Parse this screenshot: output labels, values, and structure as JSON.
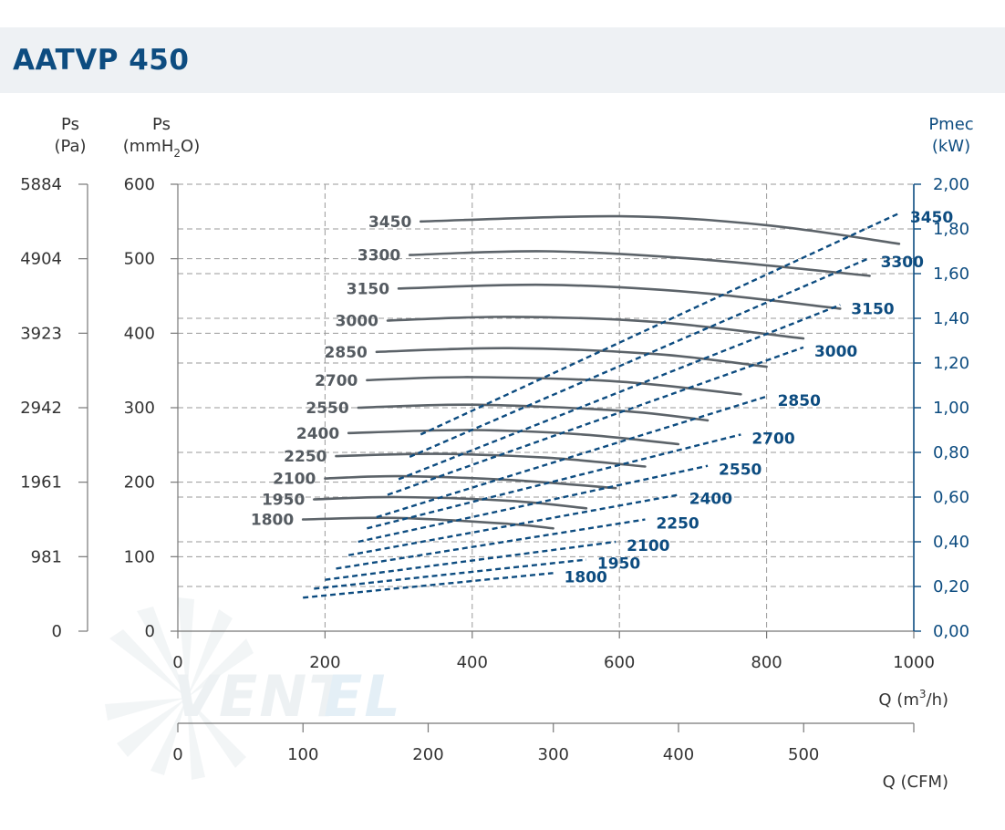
{
  "title": "AATVP 450",
  "chart_data": {
    "type": "line",
    "title": "AATVP 450",
    "axes": {
      "left_pa": {
        "label": "Ps",
        "unit": "(Pa)",
        "ticks": [
          "5884",
          "4904",
          "3923",
          "2942",
          "1961",
          "981",
          "0"
        ]
      },
      "left_mmh2o": {
        "label": "Ps",
        "unit_prefix": "(mmH",
        "unit_sub": "2",
        "unit_suffix": "O)",
        "ticks": [
          "600",
          "500",
          "400",
          "300",
          "200",
          "100",
          "0"
        ],
        "ylim": [
          0,
          600
        ]
      },
      "right_power": {
        "label": "Pmec",
        "unit": "(kW)",
        "ticks": [
          "2,00",
          "1,80",
          "1,60",
          "1,40",
          "1,20",
          "1,00",
          "0,80",
          "0,60",
          "0,40",
          "0,20",
          "0,00"
        ],
        "ylim": [
          0,
          2.0
        ]
      },
      "x_m3h": {
        "label_prefix": "Q (m",
        "label_sup": "3",
        "label_suffix": "/h)",
        "ticks": [
          "0",
          "200",
          "400",
          "600",
          "800",
          "1000"
        ],
        "xlim": [
          0,
          1000
        ]
      },
      "x_cfm": {
        "label": "Q (CFM)",
        "ticks": [
          "0",
          "100",
          "200",
          "300",
          "400",
          "500"
        ],
        "xlim": [
          0,
          588
        ]
      }
    },
    "grid": true,
    "pressure_series": [
      {
        "name": "3450",
        "x": [
          330,
          600,
          800,
          980
        ],
        "y": [
          550,
          557,
          545,
          520
        ]
      },
      {
        "name": "3300",
        "x": [
          315,
          500,
          700,
          940
        ],
        "y": [
          505,
          510,
          500,
          477
        ]
      },
      {
        "name": "3150",
        "x": [
          300,
          500,
          700,
          900
        ],
        "y": [
          460,
          465,
          455,
          433
        ]
      },
      {
        "name": "3000",
        "x": [
          285,
          450,
          650,
          850
        ],
        "y": [
          417,
          422,
          415,
          393
        ]
      },
      {
        "name": "2850",
        "x": [
          270,
          450,
          650,
          800
        ],
        "y": [
          375,
          380,
          372,
          355
        ]
      },
      {
        "name": "2700",
        "x": [
          257,
          400,
          600,
          765
        ],
        "y": [
          337,
          341,
          335,
          318
        ]
      },
      {
        "name": "2550",
        "x": [
          245,
          400,
          600,
          720
        ],
        "y": [
          300,
          304,
          296,
          283
        ]
      },
      {
        "name": "2400",
        "x": [
          232,
          400,
          550,
          680
        ],
        "y": [
          266,
          270,
          264,
          251
        ]
      },
      {
        "name": "2250",
        "x": [
          215,
          350,
          500,
          635
        ],
        "y": [
          235,
          238,
          233,
          221
        ]
      },
      {
        "name": "2100",
        "x": [
          200,
          300,
          450,
          595
        ],
        "y": [
          205,
          208,
          203,
          192
        ]
      },
      {
        "name": "1950",
        "x": [
          185,
          300,
          450,
          555
        ],
        "y": [
          177,
          180,
          175,
          165
        ]
      },
      {
        "name": "1800",
        "x": [
          170,
          300,
          450,
          510
        ],
        "y": [
          150,
          152,
          144,
          138
        ]
      }
    ],
    "power_series": [
      {
        "name": "3450",
        "x": [
          330,
          980
        ],
        "y": [
          0.88,
          1.87
        ]
      },
      {
        "name": "3300",
        "x": [
          315,
          940
        ],
        "y": [
          0.78,
          1.67
        ]
      },
      {
        "name": "3150",
        "x": [
          300,
          900
        ],
        "y": [
          0.68,
          1.46
        ]
      },
      {
        "name": "3000",
        "x": [
          285,
          850
        ],
        "y": [
          0.61,
          1.27
        ]
      },
      {
        "name": "2850",
        "x": [
          270,
          800
        ],
        "y": [
          0.51,
          1.05
        ]
      },
      {
        "name": "2700",
        "x": [
          257,
          765
        ],
        "y": [
          0.46,
          0.88
        ]
      },
      {
        "name": "2550",
        "x": [
          245,
          720
        ],
        "y": [
          0.4,
          0.74
        ]
      },
      {
        "name": "2400",
        "x": [
          232,
          680
        ],
        "y": [
          0.34,
          0.61
        ]
      },
      {
        "name": "2250",
        "x": [
          215,
          635
        ],
        "y": [
          0.28,
          0.5
        ]
      },
      {
        "name": "2100",
        "x": [
          200,
          595
        ],
        "y": [
          0.23,
          0.4
        ]
      },
      {
        "name": "1950",
        "x": [
          185,
          555
        ],
        "y": [
          0.19,
          0.32
        ]
      },
      {
        "name": "1800",
        "x": [
          170,
          510
        ],
        "y": [
          0.15,
          0.26
        ]
      }
    ]
  },
  "watermark": {
    "text": "VENTEL",
    "color": "#cfe3f0"
  },
  "colors": {
    "title": "#0d4c80",
    "pressure_curve": "#5c6369",
    "power_curve": "#0d4c80",
    "grid": "#9a9a9a",
    "title_bar": "#eef1f4"
  }
}
